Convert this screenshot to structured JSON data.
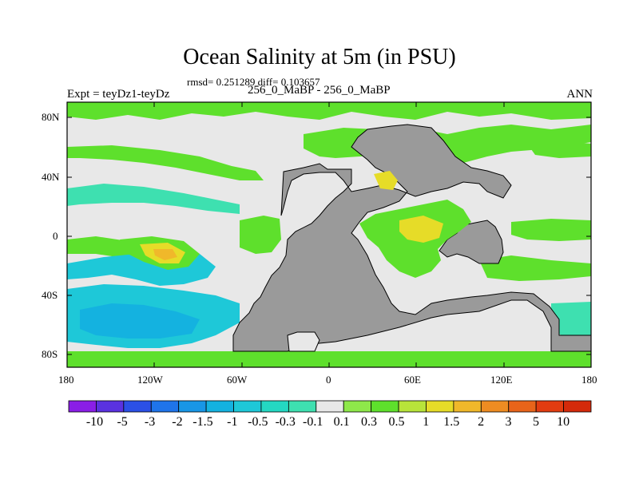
{
  "title": "Ocean Salinity at 5m (in PSU)",
  "stats": "rmsd= 0.251289 diff= 0.103657",
  "runs": "256_0_MaBP - 256_0_MaBP",
  "experiment": "Expt = teyDz1-teyDz",
  "season": "ANN",
  "axes": {
    "lat_ticks": [
      "80N",
      "40N",
      "0",
      "40S",
      "80S"
    ],
    "lon_ticks": [
      "180",
      "120W",
      "60W",
      "0",
      "60E",
      "120E",
      "180"
    ]
  },
  "colorbar": {
    "labels": [
      "-10",
      "-5",
      "-3",
      "-2",
      "-1.5",
      "-1",
      "-0.5",
      "-0.3",
      "-0.1",
      "0.1",
      "0.3",
      "0.5",
      "1",
      "1.5",
      "2",
      "3",
      "5",
      "10"
    ],
    "colors": [
      "#8a1ee6",
      "#5a32e0",
      "#2b50e6",
      "#1f74ea",
      "#1896e6",
      "#14b2e0",
      "#1ec8d8",
      "#24d8c2",
      "#3ee0b0",
      "#e8e8e8",
      "#8ee84a",
      "#5ee02c",
      "#b8e43a",
      "#e6dc28",
      "#f0b82a",
      "#ee8c22",
      "#e8641a",
      "#e23c10",
      "#d42a0a"
    ]
  },
  "map_colors": {
    "land": "#9a9a9a",
    "near_zero": "#e8e8e8",
    "positive_small": "#5ee02c",
    "positive_mid": "#b8e43a",
    "positive_high": "#e6dc28",
    "positive_peak": "#f0b82a",
    "negative_small": "#3ee0b0",
    "negative_mid": "#1ec8d8",
    "negative_large": "#14b2e0"
  }
}
